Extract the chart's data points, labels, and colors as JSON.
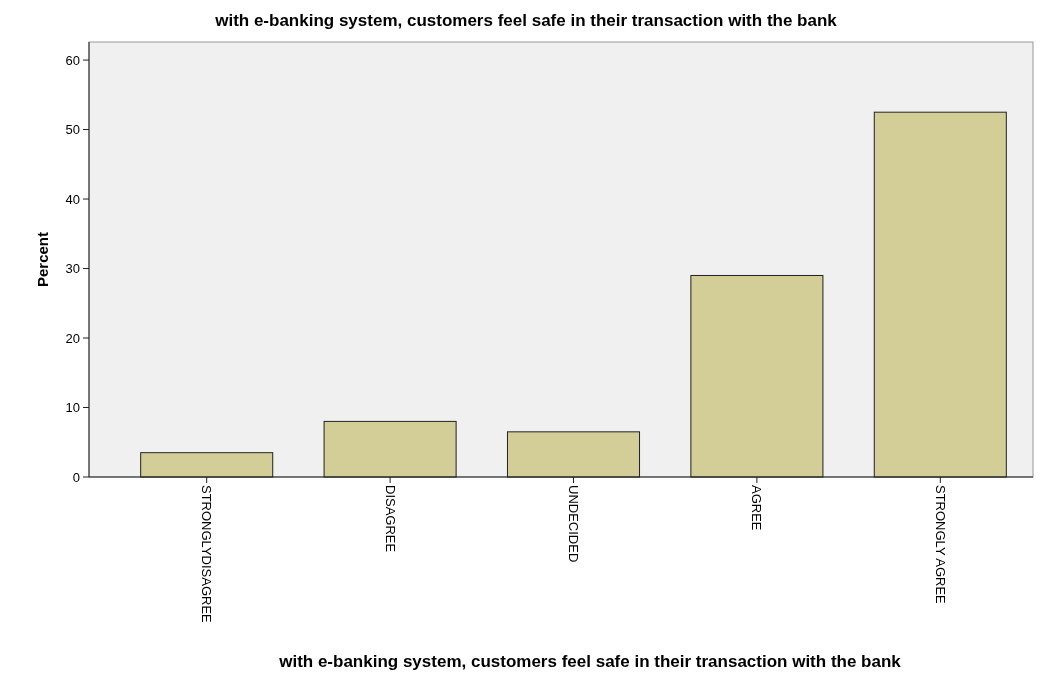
{
  "chart_data": {
    "type": "bar",
    "title": "with e-banking system, customers feel safe in their transaction with the bank",
    "xlabel": "with e-banking system, customers feel safe in their transaction with the bank",
    "ylabel": "Percent",
    "categories": [
      "STRONGLYDISAGREE",
      "DISAGREE",
      "UNDECIDED",
      "AGREE",
      "STRONGLY AGREE"
    ],
    "values": [
      3.5,
      8,
      6.5,
      29,
      52.5
    ],
    "color": "#d3ce98",
    "ylim": [
      0,
      62.6
    ],
    "yticks": [
      0,
      10,
      20,
      30,
      40,
      50,
      60
    ],
    "grid": false
  }
}
